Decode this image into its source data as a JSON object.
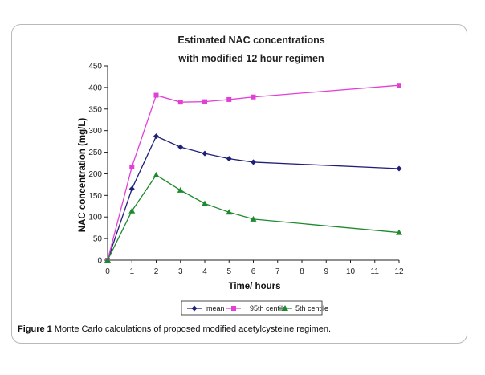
{
  "chart_data": {
    "type": "line",
    "title": "Estimated NAC concentrations",
    "subtitle": "with modified 12 hour regimen",
    "xlabel": "Time/ hours",
    "ylabel": "NAC concentration (mg/L)",
    "x_categories": [
      "0",
      "1",
      "2",
      "3",
      "4",
      "5",
      "6",
      "7",
      "8",
      "9",
      "10",
      "11",
      "12"
    ],
    "ylim": [
      0,
      450
    ],
    "yticks": [
      0,
      50,
      100,
      150,
      200,
      250,
      300,
      350,
      400,
      450
    ],
    "legend_position": "bottom",
    "series": [
      {
        "name": "mean",
        "color": "#1f1f7a",
        "marker": "diamond",
        "x": [
          0,
          1,
          2,
          3,
          4,
          5,
          6,
          12
        ],
        "values": [
          0,
          165,
          287,
          262,
          247,
          235,
          227,
          212
        ]
      },
      {
        "name": "95th centile",
        "color": "#e23fd6",
        "marker": "square",
        "x": [
          0,
          1,
          2,
          3,
          4,
          5,
          6,
          12
        ],
        "values": [
          0,
          216,
          382,
          366,
          367,
          372,
          378,
          405
        ]
      },
      {
        "name": "5th centile",
        "color": "#1e8a2e",
        "marker": "triangle",
        "x": [
          0,
          1,
          2,
          3,
          4,
          5,
          6,
          12
        ],
        "values": [
          0,
          114,
          197,
          162,
          131,
          111,
          95,
          64
        ]
      }
    ]
  },
  "caption": {
    "label": "Figure 1",
    "text": "Monte Carlo calculations of proposed modified acetylcysteine regimen."
  }
}
